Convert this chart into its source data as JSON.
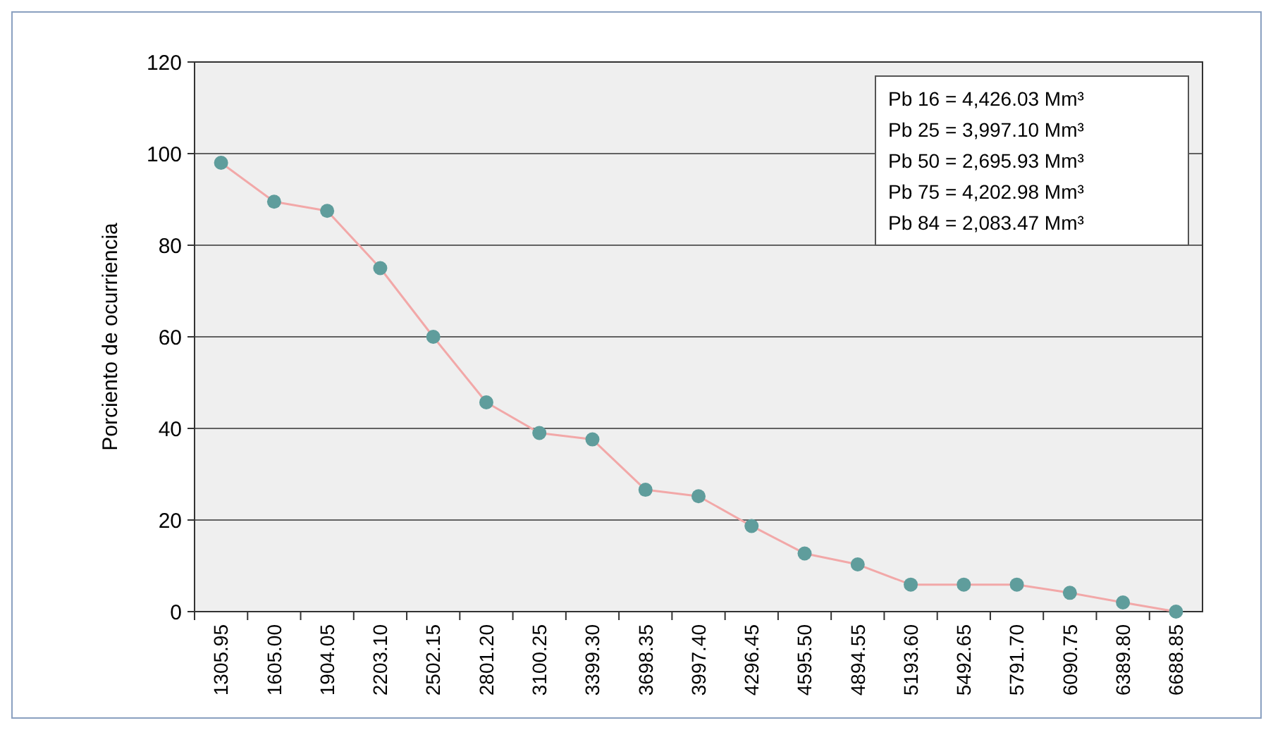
{
  "chart_data": {
    "type": "line",
    "ylabel": "Porciento de ocurriencia",
    "categories": [
      "1305.95",
      "1605.00",
      "1904.05",
      "2203.10",
      "2502.15",
      "2801.20",
      "3100.25",
      "3399.30",
      "3698.35",
      "3997.40",
      "4296.45",
      "4595.50",
      "4894.55",
      "5193.60",
      "5492.65",
      "5791.70",
      "6090.75",
      "6389.80",
      "6688.85"
    ],
    "series": [
      {
        "color": "#f2a8a8",
        "values": [
          98,
          89.5,
          87.5,
          75,
          60,
          45.7,
          39,
          37.6,
          26.6,
          25.2,
          18.7,
          12.7,
          10.3,
          5.9,
          5.9,
          5.9,
          4.1,
          2,
          0
        ]
      }
    ],
    "ylim": [
      0,
      120
    ],
    "yticks": [
      0,
      20,
      40,
      60,
      80,
      100,
      120
    ],
    "grid": "y",
    "marker": "circle",
    "line_style": "solid",
    "annotations": [
      "Pb 16 = 4,426.03 Mm³",
      "Pb 25 = 3,997.10 Mm³",
      "Pb 50 = 2,695.93 Mm³",
      "Pb 75 = 4,202.98 Mm³",
      "Pb 84 = 2,083.47 Mm³"
    ]
  }
}
